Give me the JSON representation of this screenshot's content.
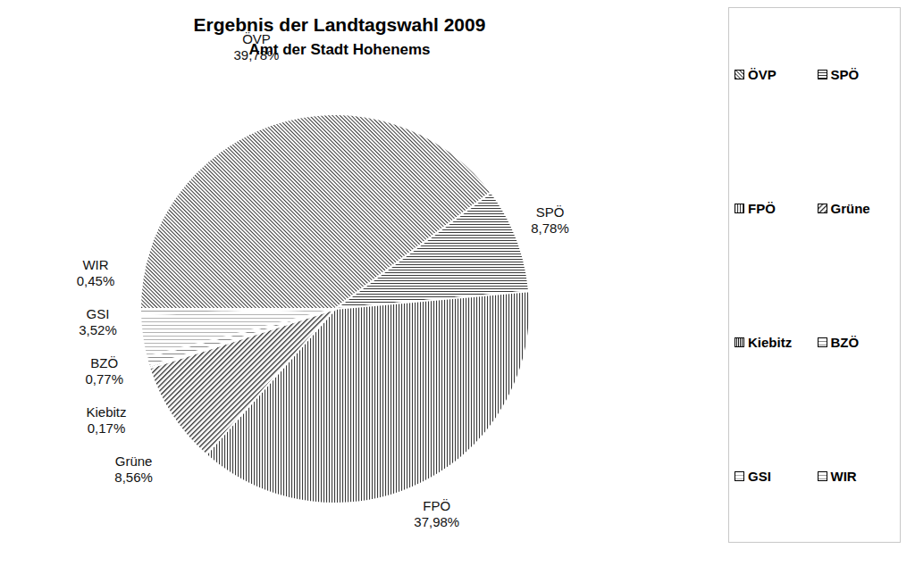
{
  "chart_data": {
    "type": "pie",
    "title": "Ergebnis der Landtagswahl 2009",
    "subtitle": "Amt der Stadt Hohenems",
    "categories": [
      "ÖVP",
      "SPÖ",
      "FPÖ",
      "Grüne",
      "Kiebitz",
      "BZÖ",
      "GSI",
      "WIR"
    ],
    "values": [
      39.78,
      8.78,
      37.98,
      8.56,
      0.17,
      0.77,
      3.52,
      0.45
    ],
    "value_labels": [
      "39,78%",
      "8,78%",
      "37,98%",
      "8,56%",
      "0,17%",
      "0,77%",
      "3,52%",
      "0,45%"
    ],
    "colors": [
      "#3a3a3a",
      "#3a3a3a",
      "#3a3a3a",
      "#2a2a2a",
      "#1a1a1a",
      "#8a8a8a",
      "#a0a0a0",
      "#909090"
    ],
    "data_labels": true,
    "legend": "right"
  }
}
